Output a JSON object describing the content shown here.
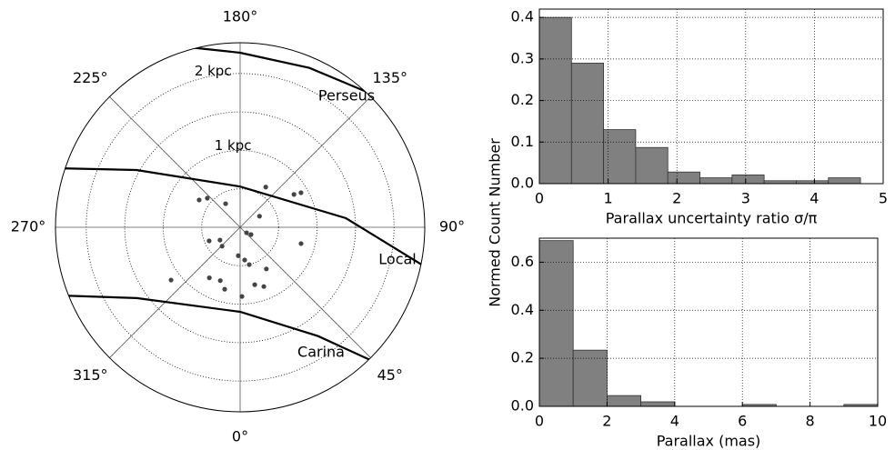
{
  "chart_data": [
    {
      "type": "polar",
      "rlim": [
        0,
        2.4
      ],
      "rgrid": [
        0.5,
        1,
        1.5,
        2
      ],
      "rticks": [
        {
          "value": 1,
          "label": "1 kpc"
        },
        {
          "value": 2,
          "label": "2 kpc"
        }
      ],
      "angle_ticks": [
        {
          "value": 0,
          "label": "0°"
        },
        {
          "value": 45,
          "label": "45°"
        },
        {
          "value": 90,
          "label": "90°"
        },
        {
          "value": 135,
          "label": "135°"
        },
        {
          "value": 180,
          "label": "180°"
        },
        {
          "value": 225,
          "label": "225°"
        },
        {
          "value": 270,
          "label": "270°"
        },
        {
          "value": 315,
          "label": "315°"
        }
      ],
      "points": {
        "color": "#444444",
        "l": [
          236.3,
          228.4,
          211.6,
          147.5,
          121.4,
          119.6,
          119.7,
          49.4,
          56.3,
          293.8,
          302.5,
          316.4,
          356.3,
          7.9,
          13.7,
          32.2,
          75.0,
          307.4,
          328.7,
          339.6,
          346.0,
          14.3,
          21.8,
          1.5
        ],
        "d": [
          0.64,
          0.57,
          0.36,
          0.62,
          0.82,
          0.91,
          0.29,
          0.11,
          0.17,
          0.44,
          0.31,
          0.34,
          0.37,
          0.43,
          0.5,
          0.64,
          0.82,
          1.13,
          0.77,
          0.74,
          0.83,
          0.77,
          0.83,
          0.9
        ]
      },
      "arms": [
        {
          "name": "Perseus",
          "color": "#000000",
          "l": [
            200.3,
            180,
            156.5,
            129.7
          ],
          "d": [
            2.52,
            2.27,
            2.26,
            2.55
          ]
        },
        {
          "name": "Local",
          "color": "#000000",
          "l": [
            252.7,
            241.1,
            180,
            94.9,
            77.7
          ],
          "d": [
            2.59,
            1.54,
            0.53,
            1.38,
            2.49
          ]
        },
        {
          "name": "Carina",
          "color": "#000000",
          "l": [
            289.7,
            304.4,
            0,
            35.6,
            45.7
          ],
          "d": [
            2.62,
            1.63,
            1.1,
            1.74,
            2.57
          ]
        }
      ]
    },
    {
      "type": "histogram",
      "xlabel": "Parallax uncertainty ratio σ/π",
      "ylabel": "Normed Count Number",
      "color": "#808080",
      "bins": [
        0,
        0.467,
        0.934,
        1.401,
        1.868,
        2.335,
        2.802,
        3.269,
        3.736,
        4.203,
        4.67
      ],
      "values": [
        0.4,
        0.29,
        0.13,
        0.087,
        0.028,
        0.014,
        0.021,
        0.007,
        0.007,
        0.014
      ],
      "xlim": [
        0,
        5
      ],
      "xticks": [
        0,
        1,
        2,
        3,
        4,
        5
      ],
      "ylim": [
        0,
        0.42
      ],
      "yticks": [
        {
          "value": 0,
          "label": "0.0"
        },
        0.1,
        0.2,
        0.3,
        0.4
      ],
      "grid": true
    },
    {
      "type": "histogram",
      "xlabel": "Parallax (mas)",
      "color": "#808080",
      "bins": [
        0,
        1,
        2,
        3,
        4,
        5,
        6,
        7,
        8,
        9,
        10
      ],
      "values": [
        0.69,
        0.234,
        0.045,
        0.019,
        0,
        0,
        0.008,
        0,
        0,
        0.008
      ],
      "xlim": [
        0,
        10
      ],
      "xticks": [
        0,
        2,
        4,
        6,
        8,
        10
      ],
      "ylim": [
        0,
        0.7
      ],
      "yticks": [
        {
          "value": 0,
          "label": "0.0"
        },
        0.2,
        0.4,
        0.6
      ],
      "grid": true
    }
  ]
}
